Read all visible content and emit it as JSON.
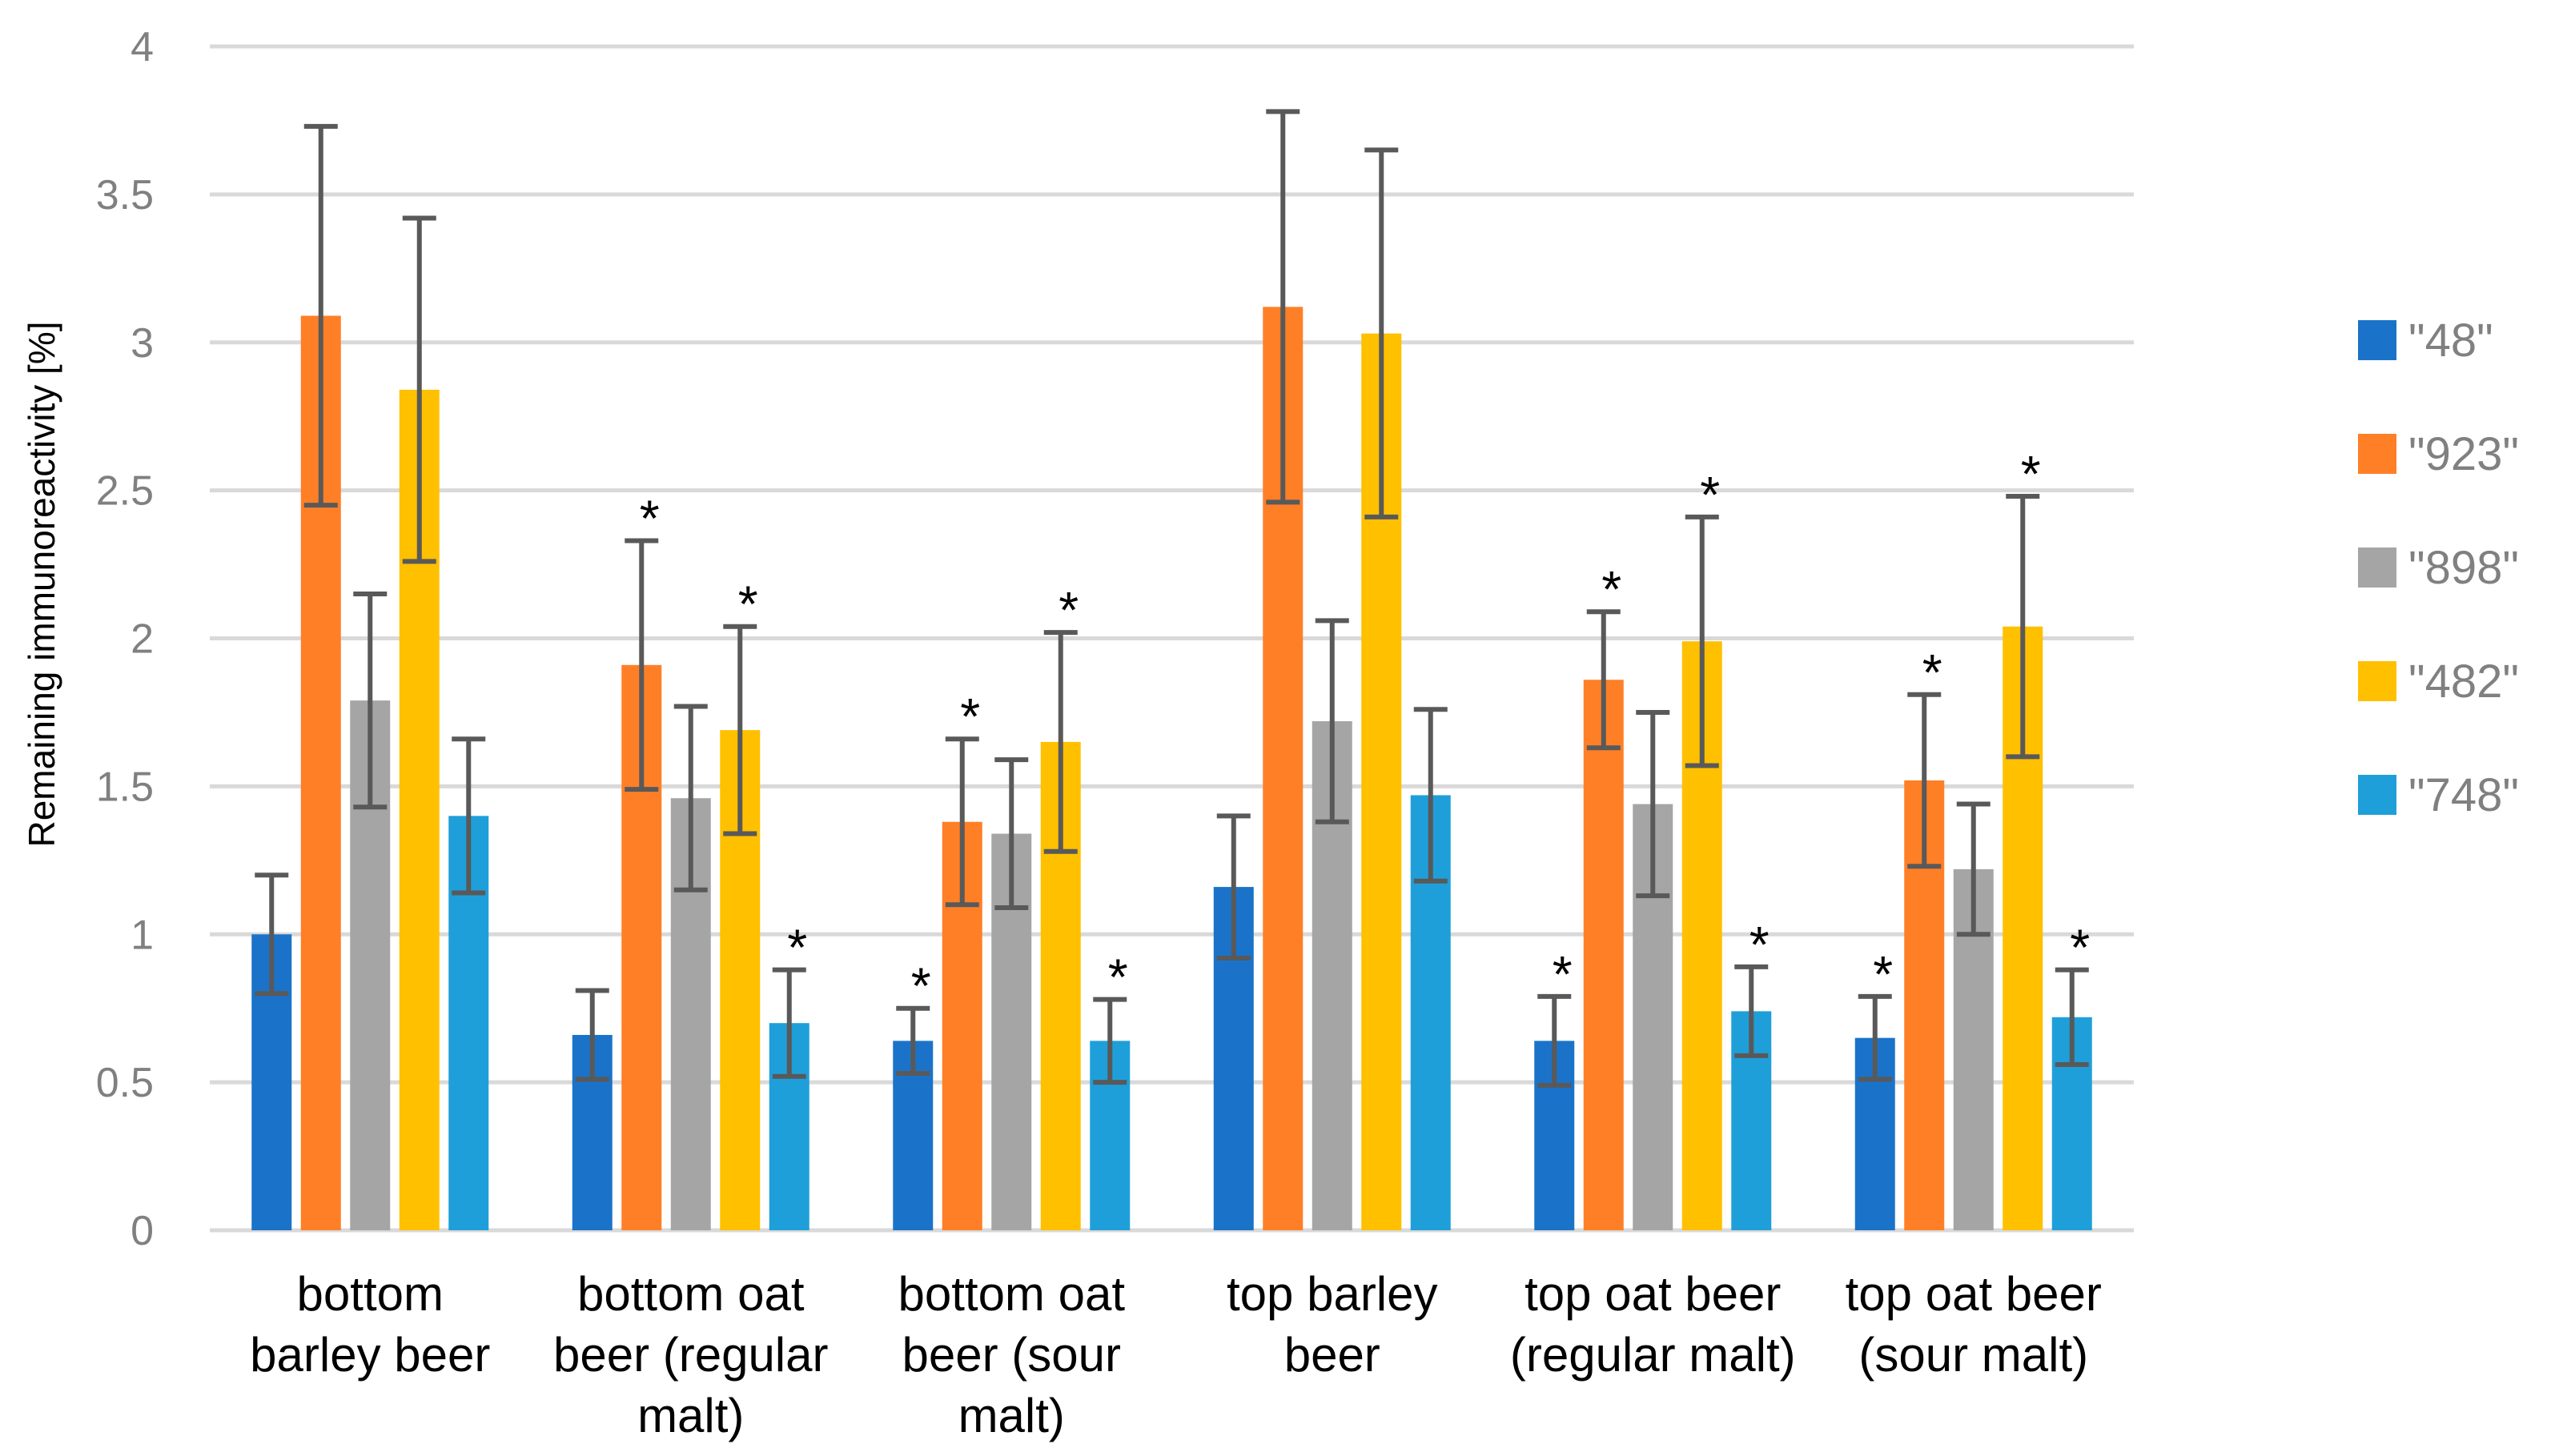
{
  "chart_data": {
    "type": "bar",
    "title": "",
    "xlabel": "",
    "ylabel": "Remaining immunoreactivity [%]",
    "ylim": [
      0,
      4
    ],
    "yticks": [
      "0",
      "0.5",
      "1",
      "1.5",
      "2",
      "2.5",
      "3",
      "3.5",
      "4"
    ],
    "grid": true,
    "legend_position": "right",
    "significance_marker": "*",
    "categories": [
      [
        "bottom",
        "barley beer"
      ],
      [
        "bottom oat",
        "beer (regular",
        "malt)"
      ],
      [
        "bottom oat",
        "beer (sour",
        "malt)"
      ],
      [
        "top barley",
        "beer"
      ],
      [
        "top oat beer",
        "(regular malt)"
      ],
      [
        "top oat beer",
        "(sour malt)"
      ]
    ],
    "series": [
      {
        "name": "\"48\"",
        "color": "#1A73C9",
        "values": [
          1.0,
          0.66,
          0.64,
          1.16,
          0.64,
          0.65
        ],
        "errors": [
          0.2,
          0.15,
          0.11,
          0.24,
          0.15,
          0.14
        ],
        "significant": [
          false,
          false,
          true,
          false,
          true,
          true
        ]
      },
      {
        "name": "\"923\"",
        "color": "#FF7F27",
        "values": [
          3.09,
          1.91,
          1.38,
          3.12,
          1.86,
          1.52
        ],
        "errors": [
          0.64,
          0.42,
          0.28,
          0.66,
          0.23,
          0.29
        ],
        "significant": [
          false,
          true,
          true,
          false,
          true,
          true
        ]
      },
      {
        "name": "\"898\"",
        "color": "#A5A5A5",
        "values": [
          1.79,
          1.46,
          1.34,
          1.72,
          1.44,
          1.22
        ],
        "errors": [
          0.36,
          0.31,
          0.25,
          0.34,
          0.31,
          0.22
        ],
        "significant": [
          false,
          false,
          false,
          false,
          false,
          false
        ]
      },
      {
        "name": "\"482\"",
        "color": "#FFC000",
        "values": [
          2.84,
          1.69,
          1.65,
          3.03,
          1.99,
          2.04
        ],
        "errors": [
          0.58,
          0.35,
          0.37,
          0.62,
          0.42,
          0.44
        ],
        "significant": [
          false,
          true,
          true,
          false,
          true,
          true
        ]
      },
      {
        "name": "\"748\"",
        "color": "#1F9FD9",
        "values": [
          1.4,
          0.7,
          0.64,
          1.47,
          0.74,
          0.72
        ],
        "errors": [
          0.26,
          0.18,
          0.14,
          0.29,
          0.15,
          0.16
        ],
        "significant": [
          false,
          true,
          true,
          false,
          true,
          true
        ]
      }
    ]
  }
}
